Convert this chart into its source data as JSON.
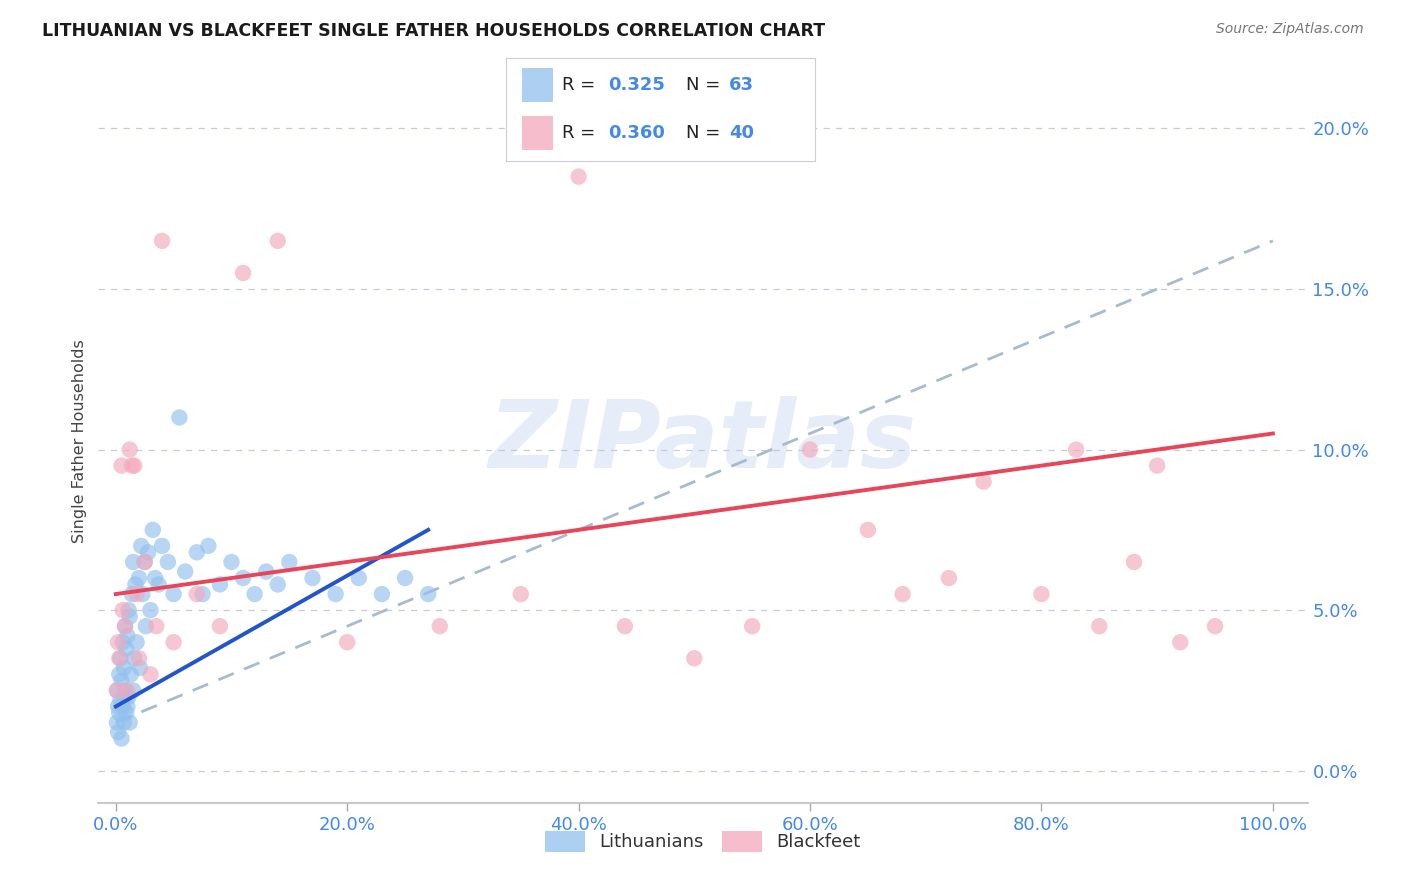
{
  "title": "LITHUANIAN VS BLACKFEET SINGLE FATHER HOUSEHOLDS CORRELATION CHART",
  "source": "Source: ZipAtlas.com",
  "ylabel": "Single Father Households",
  "ytick_values": [
    0.0,
    5.0,
    10.0,
    15.0,
    20.0
  ],
  "xtick_values": [
    0.0,
    20.0,
    40.0,
    60.0,
    80.0,
    100.0
  ],
  "xlim": [
    -1.5,
    103
  ],
  "ylim": [
    -1.0,
    21.5
  ],
  "legend_r_blue": "0.325",
  "legend_n_blue": "63",
  "legend_r_pink": "0.360",
  "legend_n_pink": "40",
  "legend_label_blue": "Lithuanians",
  "legend_label_pink": "Blackfeet",
  "blue_color": "#92C1EE",
  "pink_color": "#F4A8BC",
  "blue_line_color": "#2255CC",
  "pink_line_color": "#E8455A",
  "dashed_line_color": "#AABACE",
  "watermark": "ZIPatlas",
  "title_color": "#1A1A1A",
  "axis_tick_color": "#4488EE",
  "blue_scatter_x": [
    0.1,
    0.1,
    0.2,
    0.2,
    0.3,
    0.3,
    0.4,
    0.4,
    0.5,
    0.5,
    0.6,
    0.6,
    0.7,
    0.7,
    0.8,
    0.8,
    0.9,
    0.9,
    1.0,
    1.0,
    1.1,
    1.1,
    1.2,
    1.2,
    1.3,
    1.4,
    1.5,
    1.5,
    1.6,
    1.7,
    1.8,
    2.0,
    2.1,
    2.2,
    2.3,
    2.5,
    2.6,
    2.8,
    3.0,
    3.2,
    3.4,
    3.7,
    4.0,
    4.5,
    5.0,
    5.5,
    6.0,
    7.0,
    7.5,
    8.0,
    9.0,
    10.0,
    11.0,
    12.0,
    13.0,
    14.0,
    15.0,
    17.0,
    19.0,
    21.0,
    23.0,
    25.0,
    27.0
  ],
  "blue_scatter_y": [
    1.5,
    2.5,
    1.2,
    2.0,
    1.8,
    3.0,
    2.2,
    3.5,
    1.0,
    2.8,
    2.0,
    4.0,
    1.5,
    3.2,
    2.5,
    4.5,
    1.8,
    3.8,
    2.0,
    4.2,
    2.3,
    5.0,
    1.5,
    4.8,
    3.0,
    5.5,
    2.5,
    6.5,
    3.5,
    5.8,
    4.0,
    6.0,
    3.2,
    7.0,
    5.5,
    6.5,
    4.5,
    6.8,
    5.0,
    7.5,
    6.0,
    5.8,
    7.0,
    6.5,
    5.5,
    11.0,
    6.2,
    6.8,
    5.5,
    7.0,
    5.8,
    6.5,
    6.0,
    5.5,
    6.2,
    5.8,
    6.5,
    6.0,
    5.5,
    6.0,
    5.5,
    6.0,
    5.5
  ],
  "pink_scatter_x": [
    0.1,
    0.2,
    0.3,
    0.5,
    0.6,
    0.8,
    1.0,
    1.2,
    1.4,
    1.6,
    1.8,
    2.0,
    2.5,
    3.0,
    3.5,
    4.0,
    5.0,
    7.0,
    9.0,
    11.0,
    14.0,
    20.0,
    28.0,
    35.0,
    40.0,
    44.0,
    50.0,
    55.0,
    60.0,
    65.0,
    68.0,
    72.0,
    75.0,
    80.0,
    83.0,
    85.0,
    88.0,
    90.0,
    92.0,
    95.0
  ],
  "pink_scatter_y": [
    2.5,
    4.0,
    3.5,
    9.5,
    5.0,
    4.5,
    2.5,
    10.0,
    9.5,
    9.5,
    5.5,
    3.5,
    6.5,
    3.0,
    4.5,
    16.5,
    4.0,
    5.5,
    4.5,
    15.5,
    16.5,
    4.0,
    4.5,
    5.5,
    18.5,
    4.5,
    3.5,
    4.5,
    10.0,
    7.5,
    5.5,
    6.0,
    9.0,
    5.5,
    10.0,
    4.5,
    6.5,
    9.5,
    4.0,
    4.5
  ],
  "blue_line_x0": 0,
  "blue_line_x1": 27,
  "blue_line_y0": 2.0,
  "blue_line_y1": 7.5,
  "pink_line_x0": 0,
  "pink_line_x1": 100,
  "pink_line_y0": 5.5,
  "pink_line_y1": 10.5,
  "dashed_line_x0": 0,
  "dashed_line_x1": 100,
  "dashed_line_y0": 1.5,
  "dashed_line_y1": 16.5
}
